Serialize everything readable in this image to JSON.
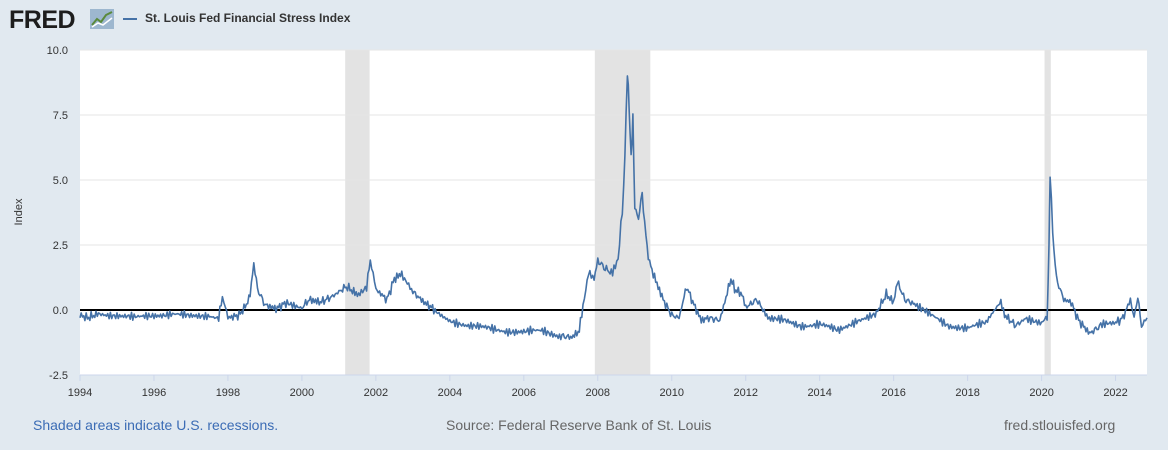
{
  "header": {
    "logo_text": "FRED",
    "legend_label": "St. Louis Fed Financial Stress Index",
    "series_color": "#4572a7"
  },
  "footer": {
    "recessions_note": "Shaded areas indicate U.S. recessions.",
    "source": "Source: Federal Reserve Bank of St. Louis",
    "site": "fred.stlouisfed.org"
  },
  "chart_data": {
    "type": "line",
    "title": "St. Louis Fed Financial Stress Index",
    "xlabel": "",
    "ylabel": "Index",
    "xlim": [
      1994.0,
      2022.85
    ],
    "ylim": [
      -2.5,
      10.0
    ],
    "yticks": [
      -2.5,
      0.0,
      2.5,
      5.0,
      7.5,
      10.0
    ],
    "ytick_labels": [
      "-2.5",
      "0.0",
      "2.5",
      "5.0",
      "7.5",
      "10.0"
    ],
    "xticks": [
      1994,
      1996,
      1998,
      2000,
      2002,
      2004,
      2006,
      2008,
      2010,
      2012,
      2014,
      2016,
      2018,
      2020,
      2022
    ],
    "xtick_labels": [
      "1994",
      "1996",
      "1998",
      "2000",
      "2002",
      "2004",
      "2006",
      "2008",
      "2010",
      "2012",
      "2014",
      "2016",
      "2018",
      "2020",
      "2022"
    ],
    "zero_line": 0.0,
    "recessions": [
      [
        2001.17,
        2001.83
      ],
      [
        2007.92,
        2009.42
      ],
      [
        2020.08,
        2020.25
      ]
    ],
    "series": [
      {
        "name": "St. Louis Fed Financial Stress Index",
        "color": "#4572a7",
        "x": [
          1994.0,
          1994.2,
          1994.5,
          1995.0,
          1995.5,
          1996.0,
          1996.5,
          1997.0,
          1997.5,
          1997.75,
          1997.85,
          1998.0,
          1998.3,
          1998.5,
          1998.6,
          1998.7,
          1998.8,
          1999.0,
          1999.3,
          1999.6,
          2000.0,
          2000.2,
          2000.5,
          2000.8,
          2001.0,
          2001.2,
          2001.5,
          2001.75,
          2001.85,
          2002.0,
          2002.3,
          2002.5,
          2002.7,
          2002.85,
          2003.0,
          2003.3,
          2003.6,
          2004.0,
          2004.5,
          2005.0,
          2005.5,
          2006.0,
          2006.5,
          2007.0,
          2007.3,
          2007.5,
          2007.6,
          2007.75,
          2007.9,
          2008.0,
          2008.2,
          2008.4,
          2008.55,
          2008.7,
          2008.8,
          2008.85,
          2008.9,
          2008.95,
          2009.0,
          2009.1,
          2009.2,
          2009.3,
          2009.4,
          2009.6,
          2009.8,
          2010.0,
          2010.2,
          2010.4,
          2010.6,
          2010.8,
          2011.0,
          2011.3,
          2011.6,
          2011.7,
          2011.9,
          2012.0,
          2012.3,
          2012.6,
          2013.0,
          2013.5,
          2014.0,
          2014.5,
          2015.0,
          2015.5,
          2015.8,
          2016.0,
          2016.1,
          2016.3,
          2016.6,
          2017.0,
          2017.5,
          2018.0,
          2018.5,
          2018.9,
          2019.0,
          2019.3,
          2019.6,
          2020.0,
          2020.15,
          2020.2,
          2020.23,
          2020.3,
          2020.4,
          2020.6,
          2020.8,
          2021.0,
          2021.3,
          2021.6,
          2022.0,
          2022.2,
          2022.4,
          2022.5,
          2022.6,
          2022.7,
          2022.85
        ],
        "y": [
          -0.2,
          -0.3,
          -0.15,
          -0.2,
          -0.3,
          -0.2,
          -0.15,
          -0.25,
          -0.2,
          -0.3,
          0.5,
          -0.3,
          -0.2,
          0.2,
          0.6,
          1.8,
          0.8,
          0.2,
          0.05,
          0.3,
          0.1,
          0.4,
          0.3,
          0.5,
          0.7,
          0.9,
          0.6,
          0.9,
          1.9,
          0.8,
          0.4,
          1.2,
          1.4,
          1.0,
          0.7,
          0.3,
          0.0,
          -0.4,
          -0.6,
          -0.7,
          -0.8,
          -0.85,
          -0.8,
          -1.0,
          -1.05,
          -0.8,
          0.2,
          1.4,
          1.2,
          1.9,
          1.6,
          1.4,
          2.0,
          4.5,
          9.2,
          7.9,
          6.0,
          7.5,
          4.0,
          3.5,
          4.5,
          2.8,
          1.8,
          1.0,
          0.3,
          -0.2,
          -0.3,
          0.9,
          0.2,
          -0.4,
          -0.3,
          -0.4,
          1.2,
          0.8,
          0.6,
          0.1,
          0.4,
          -0.3,
          -0.4,
          -0.6,
          -0.55,
          -0.8,
          -0.4,
          -0.2,
          0.6,
          0.3,
          1.1,
          0.4,
          0.2,
          -0.2,
          -0.6,
          -0.7,
          -0.5,
          0.3,
          -0.2,
          -0.6,
          -0.3,
          -0.5,
          -0.3,
          2.5,
          5.3,
          3.0,
          1.2,
          0.4,
          0.3,
          -0.4,
          -0.9,
          -0.6,
          -0.5,
          -0.3,
          0.4,
          -0.3,
          0.5,
          -0.6,
          -0.3
        ]
      }
    ]
  }
}
